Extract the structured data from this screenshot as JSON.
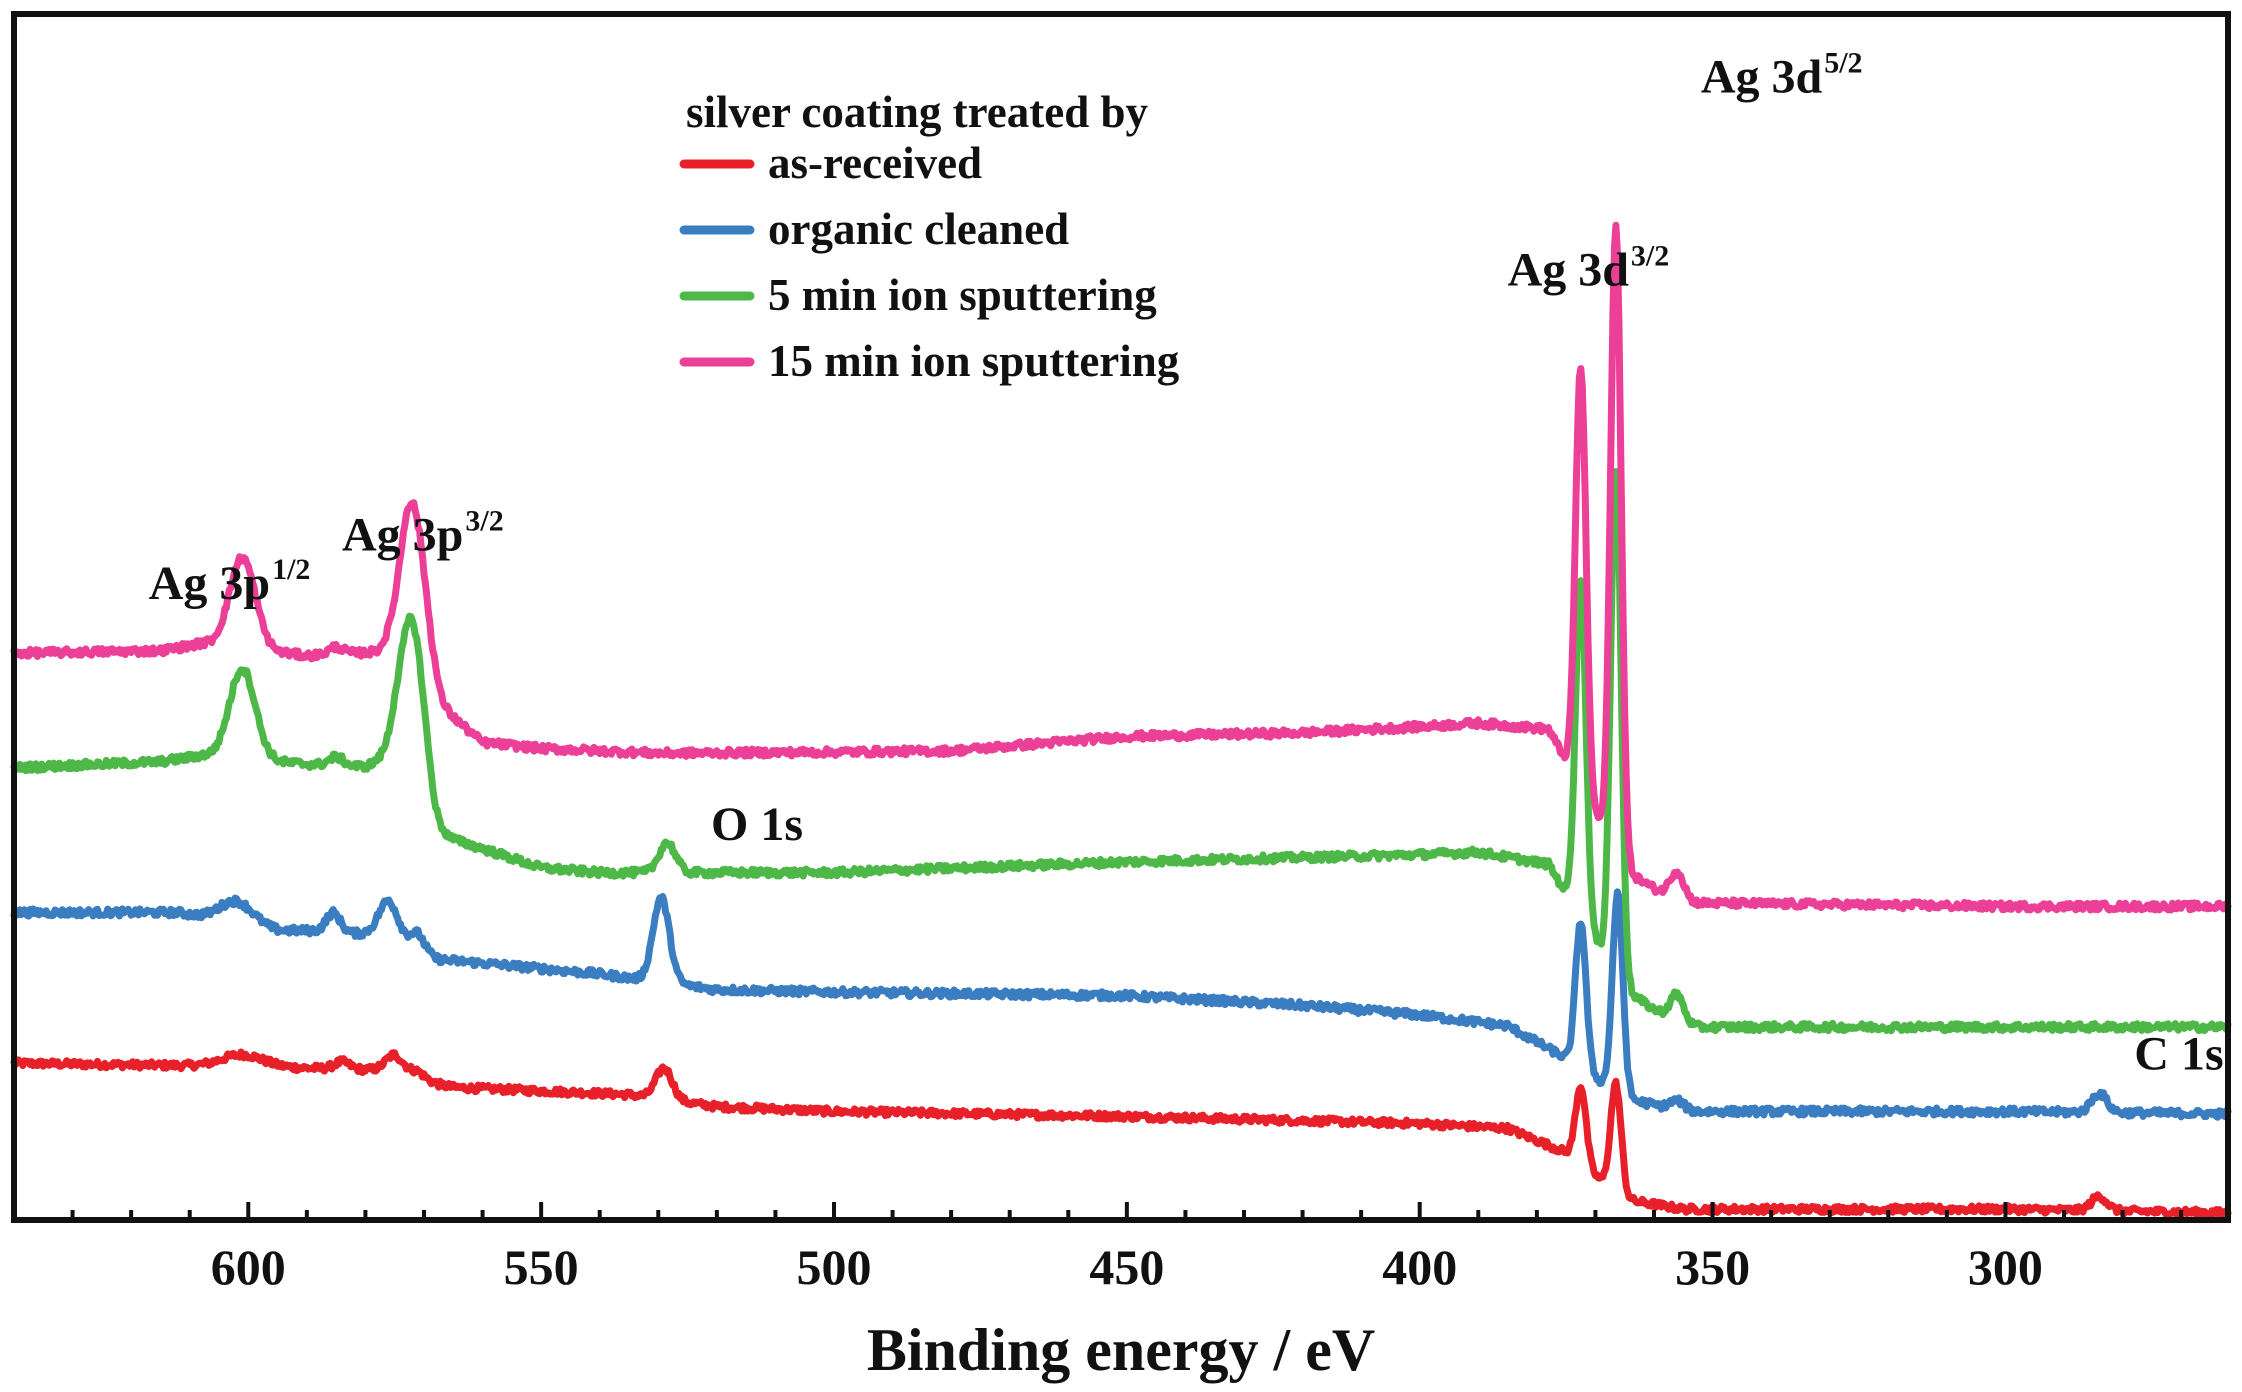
{
  "chart_data": {
    "type": "line",
    "title": "",
    "xlabel": "Binding energy / eV",
    "ylabel": "",
    "xlim": [
      640,
      262
    ],
    "x_reversed": true,
    "y_units": "offset intensity (arbitrary units, axis not labeled)",
    "ylim": [
      0,
      100
    ],
    "grid": false,
    "x_ticks": [
      600,
      550,
      500,
      450,
      400,
      350,
      300
    ],
    "x_tick_labels": [
      "600",
      "550",
      "500",
      "450",
      "400",
      "350",
      "300"
    ],
    "legend": {
      "title": "silver coating treated by",
      "position": "top-center",
      "entries": [
        {
          "name": "as-received",
          "color": "#e8202a"
        },
        {
          "name": "organic cleaned",
          "color": "#3a7dc0"
        },
        {
          "name": "5 min ion sputtering",
          "color": "#4db848"
        },
        {
          "name": "15 min ion sputtering",
          "color": "#ec3f97"
        }
      ]
    },
    "series": [
      {
        "name": "as-received",
        "color": "#e8202a",
        "baseline": [
          [
            640,
            13
          ],
          [
            610,
            12.8
          ],
          [
            590,
            12.6
          ],
          [
            575,
            12.4
          ],
          [
            570,
            11.5
          ],
          [
            565,
            11
          ],
          [
            535,
            10.4
          ],
          [
            520,
            9.4
          ],
          [
            500,
            9
          ],
          [
            450,
            8.6
          ],
          [
            400,
            8
          ],
          [
            385,
            7.6
          ],
          [
            375,
            5.6
          ],
          [
            365,
            1.7
          ],
          [
            355,
            0.9
          ],
          [
            300,
            0.9
          ],
          [
            262,
            0.6
          ]
        ],
        "peaks": [
          {
            "x": 601,
            "h": 1,
            "w": 3.5
          },
          {
            "x": 584,
            "h": 0.6,
            "w": 1.3
          },
          {
            "x": 575,
            "h": 1.3,
            "w": 1.5
          },
          {
            "x": 571,
            "h": 0.6,
            "w": 1.3
          },
          {
            "x": 529,
            "h": 2.6,
            "w": 1.4
          },
          {
            "x": 372.5,
            "h": 6.5,
            "w": 0.9
          },
          {
            "x": 366.5,
            "h": 9,
            "w": 0.9
          },
          {
            "x": 284,
            "h": 1.2,
            "w": 1.3
          }
        ],
        "noise": 0.28
      },
      {
        "name": "organic cleaned",
        "color": "#3a7dc0",
        "baseline": [
          [
            640,
            25.5
          ],
          [
            612,
            25.5
          ],
          [
            605,
            24.9
          ],
          [
            595,
            24
          ],
          [
            590,
            24
          ],
          [
            576,
            23.6
          ],
          [
            570,
            21.7
          ],
          [
            560,
            21.3
          ],
          [
            540,
            20.4
          ],
          [
            520,
            19.1
          ],
          [
            500,
            18.9
          ],
          [
            450,
            18.6
          ],
          [
            420,
            17.8
          ],
          [
            400,
            17
          ],
          [
            385,
            16.1
          ],
          [
            375,
            13.4
          ],
          [
            365,
            10.1
          ],
          [
            355,
            9
          ],
          [
            300,
            9
          ],
          [
            262,
            8.8
          ]
        ],
        "peaks": [
          {
            "x": 602,
            "h": 1.8,
            "w": 2.8
          },
          {
            "x": 585.5,
            "h": 1.6,
            "w": 1.2
          },
          {
            "x": 576,
            "h": 2.9,
            "w": 1.7
          },
          {
            "x": 571,
            "h": 1.7,
            "w": 1.3
          },
          {
            "x": 529.5,
            "h": 7,
            "w": 1.4
          },
          {
            "x": 372.5,
            "h": 12.2,
            "w": 0.9
          },
          {
            "x": 366.2,
            "h": 16.5,
            "w": 0.9
          },
          {
            "x": 356,
            "h": 0.8,
            "w": 1.2
          },
          {
            "x": 284,
            "h": 1.6,
            "w": 1.3
          }
        ],
        "noise": 0.3
      },
      {
        "name": "5 min ion sputtering",
        "color": "#4db848",
        "baseline": [
          [
            640,
            37.5
          ],
          [
            615,
            38
          ],
          [
            608,
            38.5
          ],
          [
            590,
            37.8
          ],
          [
            580,
            37.6
          ],
          [
            575,
            38.5
          ],
          [
            568,
            32
          ],
          [
            560,
            30.8
          ],
          [
            550,
            29.2
          ],
          [
            540,
            28.8
          ],
          [
            500,
            28.8
          ],
          [
            450,
            29.7
          ],
          [
            400,
            30.3
          ],
          [
            390,
            30.5
          ],
          [
            378,
            29.5
          ],
          [
            365,
            19
          ],
          [
            360,
            17.5
          ],
          [
            355,
            16
          ],
          [
            300,
            16
          ],
          [
            262,
            16
          ]
        ],
        "peaks": [
          {
            "x": 601,
            "h": 7.5,
            "w": 2.2
          },
          {
            "x": 585,
            "h": 0.7,
            "w": 1.2
          },
          {
            "x": 572,
            "h": 14,
            "w": 2.1
          },
          {
            "x": 528.5,
            "h": 2.5,
            "w": 1.4
          },
          {
            "x": 372.5,
            "h": 28,
            "w": 0.9
          },
          {
            "x": 366.5,
            "h": 42,
            "w": 0.9
          },
          {
            "x": 356,
            "h": 2.4,
            "w": 1.2
          }
        ],
        "noise": 0.3
      },
      {
        "name": "15 min ion sputtering",
        "color": "#ec3f97",
        "baseline": [
          [
            640,
            47
          ],
          [
            615,
            47.2
          ],
          [
            608,
            47.8
          ],
          [
            590,
            46.8
          ],
          [
            578,
            47.1
          ],
          [
            573,
            48.5
          ],
          [
            567,
            42.5
          ],
          [
            560,
            39.6
          ],
          [
            550,
            39.1
          ],
          [
            530,
            38.7
          ],
          [
            500,
            38.8
          ],
          [
            480,
            38.9
          ],
          [
            450,
            40.1
          ],
          [
            420,
            40.4
          ],
          [
            400,
            40.9
          ],
          [
            390,
            41.2
          ],
          [
            378,
            40.7
          ],
          [
            365,
            29
          ],
          [
            360,
            27.5
          ],
          [
            355,
            26.3
          ],
          [
            300,
            26
          ],
          [
            262,
            26
          ]
        ],
        "peaks": [
          {
            "x": 601,
            "h": 7.5,
            "w": 2.2
          },
          {
            "x": 585,
            "h": 0.6,
            "w": 1.2
          },
          {
            "x": 571.8,
            "h": 12,
            "w": 2.1
          },
          {
            "x": 372.5,
            "h": 35,
            "w": 0.9
          },
          {
            "x": 366.5,
            "h": 52,
            "w": 0.9
          },
          {
            "x": 356,
            "h": 2.4,
            "w": 1.2
          }
        ],
        "noise": 0.3
      }
    ],
    "annotations": [
      {
        "text": "Ag 3p",
        "sup": "1/2",
        "x": 617,
        "y": 51.5
      },
      {
        "text": "Ag 3p",
        "sup": "3/2",
        "x": 584,
        "y": 55.5
      },
      {
        "text": "O 1s",
        "x": 521,
        "y": 31.5
      },
      {
        "text": "Ag 3d",
        "sup": "3/2",
        "x": 385,
        "y": 77.5
      },
      {
        "text": "Ag 3d",
        "sup": "5/2",
        "x": 352,
        "y": 93.5
      },
      {
        "text": "C 1s",
        "x": 278,
        "y": 12.5
      }
    ]
  }
}
